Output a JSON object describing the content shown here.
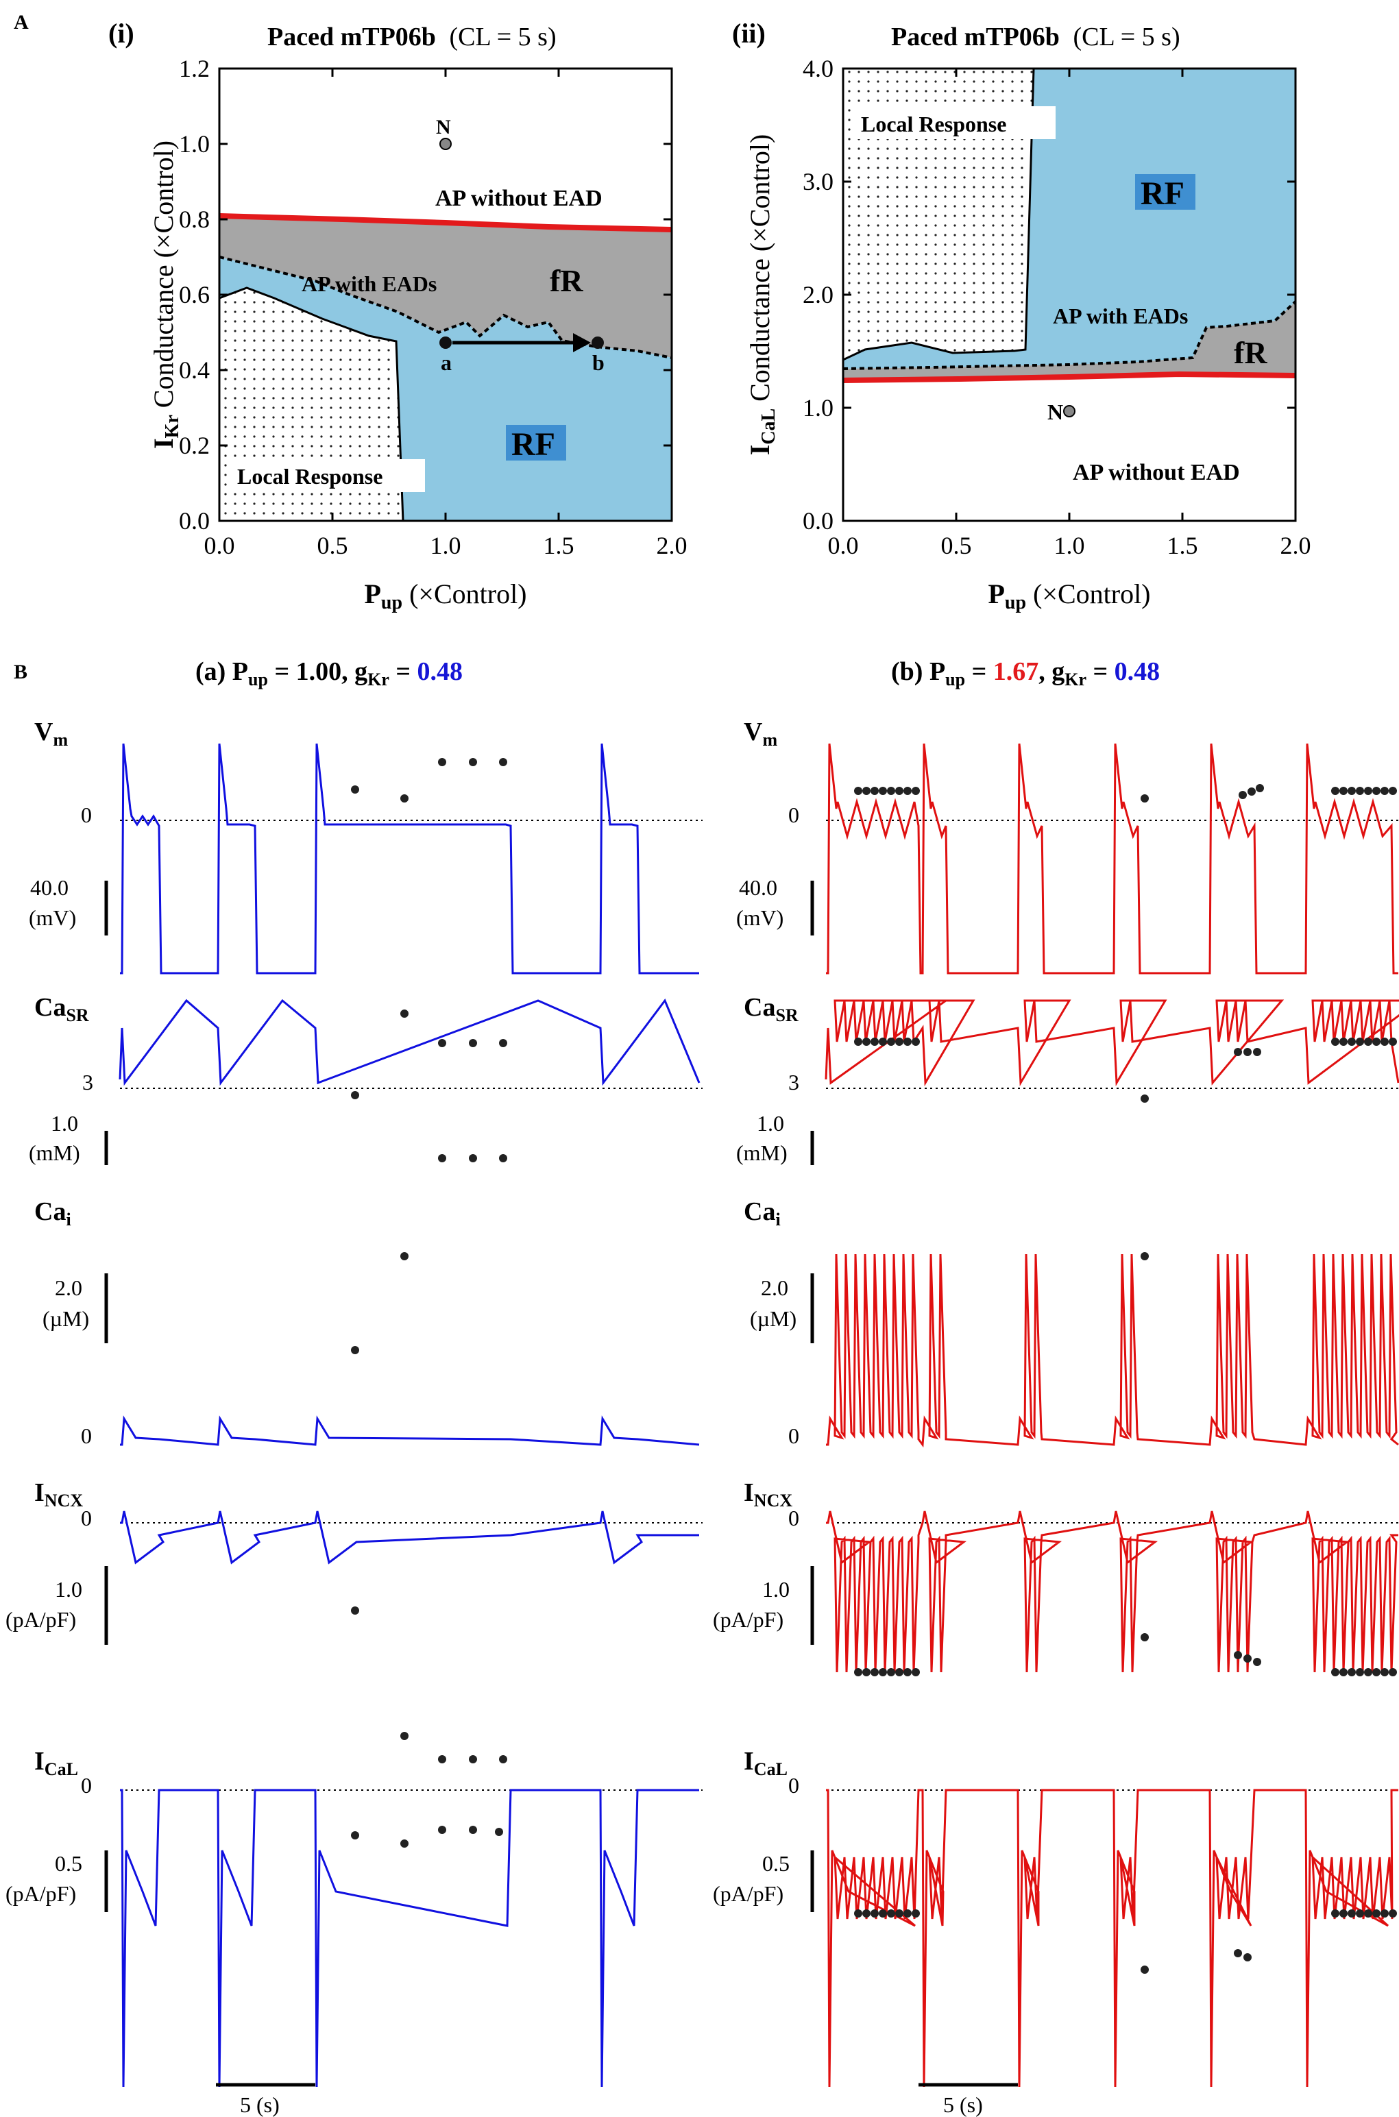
{
  "colors": {
    "red": "#e31a1c",
    "blue": "#1515d6",
    "fR_gray": "#a6a6a6",
    "RF_blue": "#8ec8e2",
    "RF_label_bg": "#3f8fd1",
    "trace_blue": "#1010e0",
    "trace_red": "#e01010"
  },
  "panelA": {
    "letter": "A",
    "i": {
      "roman": "(i)",
      "title_bold": "Paced mTP06b",
      "title_rest": "(CL = 5 s)",
      "ylabel_main": "I",
      "ylabel_sub": "Kr",
      "ylabel_rest": " Conductance (×Control)",
      "xlabel_main": "P",
      "xlabel_sub": "up",
      "xlabel_rest": " (×Control)",
      "yticks": [
        "0.0",
        "0.2",
        "0.4",
        "0.6",
        "0.8",
        "1.0",
        "1.2"
      ],
      "xticks": [
        "0.0",
        "0.5",
        "1.0",
        "1.5",
        "2.0"
      ],
      "label_N": "N",
      "label_ap_without": "AP without EAD",
      "label_ap_with": "AP with EADs",
      "label_fR": "fR",
      "label_RF": "RF",
      "label_local": "Local Response",
      "label_a": "a",
      "label_b": "b"
    },
    "ii": {
      "roman": "(ii)",
      "title_bold": "Paced mTP06b",
      "title_rest": "(CL = 5 s)",
      "ylabel_main": "I",
      "ylabel_sub": "CaL",
      "ylabel_rest": " Conductance (×Control)",
      "xlabel_main": "P",
      "xlabel_sub": "up",
      "xlabel_rest": " (×Control)",
      "yticks": [
        "0.0",
        "1.0",
        "2.0",
        "3.0",
        "4.0"
      ],
      "xticks": [
        "0.0",
        "0.5",
        "1.0",
        "1.5",
        "2.0"
      ],
      "label_N": "N",
      "label_ap_without": "AP without EAD",
      "label_ap_with": "AP with EADs",
      "label_fR": "fR",
      "label_RF": "RF",
      "label_local": "Local Response"
    }
  },
  "panelB": {
    "letter": "B",
    "col_a_title_prefix": "(a) P",
    "col_a_sub1": "up",
    "col_a_eq1": " = 1.00, g",
    "col_a_sub2": "Kr",
    "col_a_eq2": " = ",
    "col_a_gkr": "0.48",
    "col_b_title_prefix": "(b) P",
    "col_b_sub1": "up",
    "col_b_eq1": " = ",
    "col_b_pup": "1.67",
    "col_b_eq1b": ", g",
    "col_b_sub2": "Kr",
    "col_b_eq2": " = ",
    "col_b_gkr": "0.48",
    "traces": [
      {
        "main": "V",
        "sub": "m",
        "zero": "0",
        "scale": "40.0",
        "unit": "(mV)"
      },
      {
        "main": "Ca",
        "sub": "SR",
        "zero": "3",
        "scale": "1.0",
        "unit": "(mM)"
      },
      {
        "main": "Ca",
        "sub": "i",
        "zero": "0",
        "scale": "2.0",
        "unit": "(µM)"
      },
      {
        "main": "I",
        "sub": "NCX",
        "zero": "0",
        "scale": "1.0",
        "unit": "(pA/pF)"
      },
      {
        "main": "I",
        "sub": "CaL",
        "zero": "0",
        "scale": "0.5",
        "unit": "(pA/pF)"
      }
    ],
    "timebar_label": "5 (s)"
  },
  "chart_data": [
    {
      "type": "area",
      "title": "Paced mTP06b (CL = 5 s)",
      "panel": "A(i)",
      "xlabel": "Pup (×Control)",
      "ylabel": "IKr Conductance (×Control)",
      "xlim": [
        0,
        2
      ],
      "ylim": [
        0,
        1.2
      ],
      "series": [
        {
          "name": "EAD boundary (red)",
          "x": [
            0,
            0.5,
            1.0,
            1.5,
            2.0
          ],
          "y": [
            0.81,
            0.8,
            0.78,
            0.765,
            0.755
          ]
        },
        {
          "name": "fR/RF boundary (dotted)",
          "x": [
            0,
            0.25,
            0.5,
            0.75,
            1.0,
            1.1,
            1.2,
            1.3,
            1.4,
            1.5,
            1.55,
            1.6,
            1.7,
            1.8,
            1.9,
            2.0
          ],
          "y": [
            0.7,
            0.67,
            0.63,
            0.6,
            0.56,
            0.52,
            0.5,
            0.55,
            0.52,
            0.56,
            0.5,
            0.48,
            0.46,
            0.45,
            0.42,
            0.4
          ]
        },
        {
          "name": "Local Response boundary",
          "x": [
            0,
            0.1,
            0.2,
            0.3,
            0.5,
            0.7,
            0.78,
            0.8
          ],
          "y": [
            0.56,
            0.6,
            0.58,
            0.55,
            0.52,
            0.49,
            0.49,
            0.0
          ]
        }
      ],
      "points": [
        {
          "label": "N",
          "x": 1.0,
          "y": 1.0
        },
        {
          "label": "a",
          "x": 1.0,
          "y": 0.48
        },
        {
          "label": "b",
          "x": 1.67,
          "y": 0.48
        }
      ],
      "regions": [
        "AP without EAD",
        "AP with EADs",
        "fR",
        "RF",
        "Local Response"
      ]
    },
    {
      "type": "area",
      "title": "Paced mTP06b (CL = 5 s)",
      "panel": "A(ii)",
      "xlabel": "Pup (×Control)",
      "ylabel": "ICaL Conductance (×Control)",
      "xlim": [
        0,
        2
      ],
      "ylim": [
        0,
        4
      ],
      "series": [
        {
          "name": "EAD boundary (red)",
          "x": [
            0,
            0.5,
            1.0,
            1.5,
            2.0
          ],
          "y": [
            1.25,
            1.27,
            1.29,
            1.31,
            1.3
          ]
        },
        {
          "name": "fR/RF boundary (dotted)",
          "x": [
            0,
            0.25,
            0.5,
            0.75,
            1.0,
            1.25,
            1.45,
            1.55,
            1.7,
            1.85,
            2.0
          ],
          "y": [
            1.35,
            1.33,
            1.35,
            1.38,
            1.4,
            1.42,
            1.45,
            1.75,
            1.78,
            1.8,
            1.95
          ]
        },
        {
          "name": "Local Response boundary",
          "x": [
            0,
            0.1,
            0.3,
            0.5,
            0.75,
            0.8,
            0.82
          ],
          "y": [
            1.45,
            1.55,
            1.57,
            1.5,
            1.52,
            3.0,
            4.0
          ]
        }
      ],
      "points": [
        {
          "label": "N",
          "x": 1.0,
          "y": 1.0
        }
      ],
      "regions": [
        "AP without EAD",
        "AP with EADs",
        "fR",
        "RF",
        "Local Response"
      ]
    }
  ]
}
